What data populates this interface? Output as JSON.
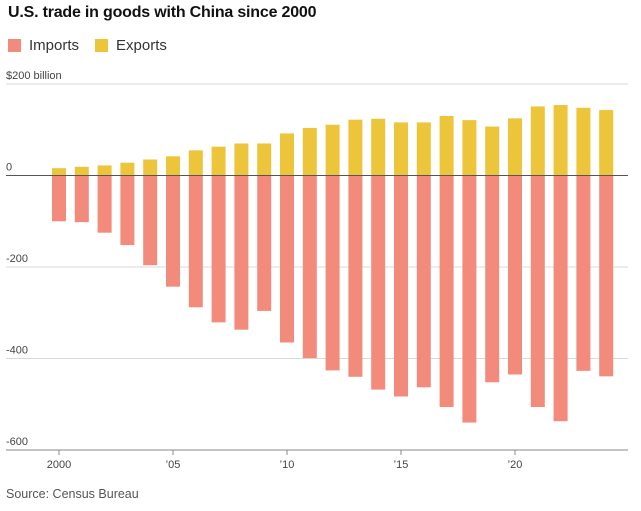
{
  "header": {
    "title": "U.S. trade in goods with China since 2000"
  },
  "legend": [
    {
      "label": "Imports",
      "color": "#f28b7b"
    },
    {
      "label": "Exports",
      "color": "#ecc53a"
    }
  ],
  "footer": {
    "source": "Source: Census Bureau"
  },
  "chart_data": {
    "type": "bar",
    "title": "U.S. trade in goods with China since 2000",
    "x": [
      2000,
      2001,
      2002,
      2003,
      2004,
      2005,
      2006,
      2007,
      2008,
      2009,
      2010,
      2011,
      2012,
      2013,
      2014,
      2015,
      2016,
      2017,
      2018,
      2019,
      2020,
      2021,
      2022,
      2023,
      2024
    ],
    "series": [
      {
        "name": "Imports",
        "color": "#f28b7b",
        "values": [
          -100,
          -102,
          -125,
          -152,
          -196,
          -243,
          -288,
          -321,
          -337,
          -296,
          -365,
          -399,
          -426,
          -440,
          -468,
          -483,
          -463,
          -506,
          -540,
          -452,
          -435,
          -506,
          -537,
          -427,
          -439
        ]
      },
      {
        "name": "Exports",
        "color": "#ecc53a",
        "values": [
          16,
          19,
          22,
          28,
          35,
          42,
          55,
          63,
          70,
          70,
          92,
          104,
          111,
          122,
          124,
          116,
          116,
          130,
          121,
          107,
          125,
          151,
          154,
          148,
          143
        ]
      }
    ],
    "yticks": [
      200,
      0,
      -200,
      -400,
      -600
    ],
    "ytick_labels": [
      "$200 billion",
      "0",
      "-200",
      "-400",
      "-600"
    ],
    "xticks": [
      2000,
      2005,
      2010,
      2015,
      2020
    ],
    "xtick_labels": [
      "2000",
      "’05",
      "’10",
      "’15",
      "’20"
    ],
    "ylim": [
      -600,
      200
    ],
    "grid": true,
    "legend_position": "top-left"
  }
}
